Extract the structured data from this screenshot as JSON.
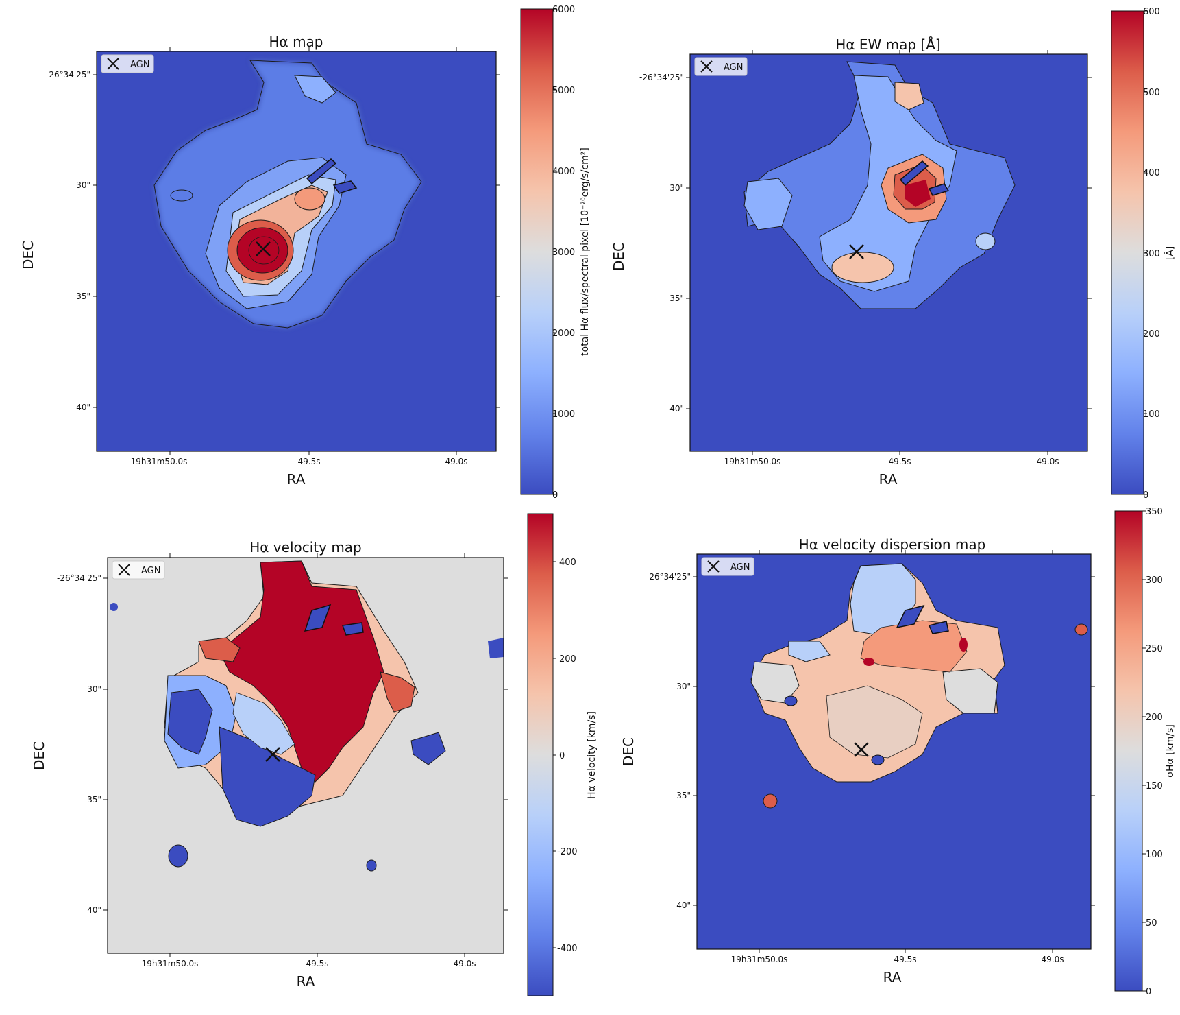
{
  "colors": {
    "cmap": [
      "#3b4cc0",
      "#6282ea",
      "#8db0fe",
      "#b8d0f9",
      "#dddddd",
      "#f5c4ac",
      "#f49a7b",
      "#dc5d4a",
      "#b40426"
    ],
    "frame": "#111111",
    "label": "#111111"
  },
  "legend_label": "AGN",
  "chart_data": [
    {
      "type": "heatmap",
      "id": "ha-map",
      "title": "Hα map",
      "xlabel": "RA",
      "ylabel": "DEC",
      "x_ticks": [
        "19h31m50.0s",
        "49.5s",
        "49.0s"
      ],
      "y_ticks": [
        "-26°34'25\"",
        "30\"",
        "35\"",
        "40\""
      ],
      "colorbar": {
        "label": "total Hα flux/spectral pixel [10⁻²⁰erg/s/cm²]",
        "min": 0,
        "max": 6000,
        "ticks": [
          0,
          1000,
          2000,
          3000,
          4000,
          5000,
          6000
        ]
      },
      "background_value": 0,
      "agn_marker": {
        "ra": "19h31m49.66s",
        "dec": "-26°34'32.9\""
      },
      "grid": false,
      "legend": "top-left"
    },
    {
      "type": "heatmap",
      "id": "ha-ew-map",
      "title": "Hα EW map [Å]",
      "xlabel": "RA",
      "ylabel": "DEC",
      "x_ticks": [
        "19h31m50.0s",
        "49.5s",
        "49.0s"
      ],
      "y_ticks": [
        "-26°34'25\"",
        "30\"",
        "35\"",
        "40\""
      ],
      "colorbar": {
        "label": "[Å]",
        "min": 0,
        "max": 600,
        "ticks": [
          0,
          100,
          200,
          300,
          400,
          500,
          600
        ]
      },
      "background_value": 0,
      "agn_marker": {
        "ra": "19h31m49.66s",
        "dec": "-26°34'32.9\""
      },
      "grid": false,
      "legend": "top-left"
    },
    {
      "type": "heatmap",
      "id": "ha-velocity-map",
      "title": "Hα velocity map",
      "xlabel": "RA",
      "ylabel": "DEC",
      "x_ticks": [
        "19h31m50.0s",
        "49.5s",
        "49.0s"
      ],
      "y_ticks": [
        "-26°34'25\"",
        "30\"",
        "35\"",
        "40\""
      ],
      "colorbar": {
        "label": "Hα velocity  [km/s]",
        "min": -500,
        "max": 500,
        "ticks": [
          -400,
          -200,
          0,
          200,
          400
        ]
      },
      "background_value": 0,
      "agn_marker": {
        "ra": "19h31m49.66s",
        "dec": "-26°34'32.9\""
      },
      "grid": false,
      "legend": "top-left"
    },
    {
      "type": "heatmap",
      "id": "ha-velocity-dispersion-map",
      "title": "Hα velocity dispersion map",
      "xlabel": "RA",
      "ylabel": "DEC",
      "x_ticks": [
        "19h31m50.0s",
        "49.5s",
        "49.0s"
      ],
      "y_ticks": [
        "-26°34'25\"",
        "30\"",
        "35\"",
        "40\""
      ],
      "colorbar": {
        "label": "σHα [km/s]",
        "min": 0,
        "max": 350,
        "ticks": [
          0,
          50,
          100,
          150,
          200,
          250,
          300,
          350
        ]
      },
      "background_value": 0,
      "agn_marker": {
        "ra": "19h31m49.66s",
        "dec": "-26°34'32.9\""
      },
      "grid": false,
      "legend": "top-left"
    }
  ]
}
